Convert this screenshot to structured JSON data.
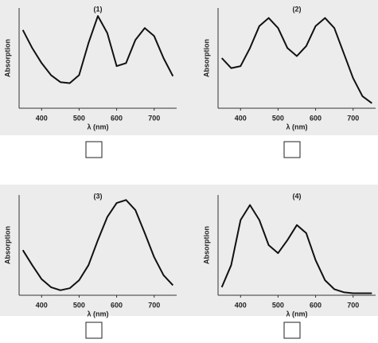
{
  "chart_data": [
    {
      "type": "line",
      "title": "(1)",
      "xlabel": "λ (nm)",
      "ylabel": "Absorption",
      "x": [
        350,
        375,
        400,
        425,
        450,
        475,
        500,
        525,
        550,
        575,
        600,
        625,
        650,
        675,
        700,
        725,
        750
      ],
      "series": [
        {
          "color": "#111111",
          "values": [
            0.78,
            0.6,
            0.45,
            0.33,
            0.26,
            0.25,
            0.33,
            0.65,
            0.92,
            0.75,
            0.42,
            0.45,
            0.68,
            0.8,
            0.72,
            0.5,
            0.32
          ]
        }
      ],
      "xlim": [
        340,
        760
      ],
      "xticks": [
        400,
        500,
        600,
        700
      ],
      "ylim": [
        0,
        1
      ]
    },
    {
      "type": "line",
      "title": "(2)",
      "xlabel": "λ (nm)",
      "ylabel": "Absorption",
      "x": [
        350,
        375,
        400,
        425,
        450,
        475,
        500,
        525,
        550,
        575,
        600,
        625,
        650,
        675,
        700,
        725,
        750
      ],
      "series": [
        {
          "color": "#111111",
          "values": [
            0.5,
            0.4,
            0.42,
            0.6,
            0.82,
            0.9,
            0.8,
            0.6,
            0.52,
            0.62,
            0.82,
            0.9,
            0.8,
            0.55,
            0.3,
            0.12,
            0.05
          ]
        }
      ],
      "xlim": [
        340,
        760
      ],
      "xticks": [
        400,
        500,
        600,
        700
      ],
      "ylim": [
        0,
        1
      ]
    },
    {
      "type": "line",
      "title": "(3)",
      "xlabel": "λ (nm)",
      "ylabel": "Absorption",
      "x": [
        350,
        375,
        400,
        425,
        450,
        475,
        500,
        525,
        550,
        575,
        600,
        625,
        650,
        675,
        700,
        725,
        750
      ],
      "series": [
        {
          "color": "#111111",
          "values": [
            0.45,
            0.3,
            0.16,
            0.08,
            0.05,
            0.07,
            0.15,
            0.3,
            0.55,
            0.78,
            0.92,
            0.95,
            0.85,
            0.62,
            0.38,
            0.2,
            0.1
          ]
        }
      ],
      "xlim": [
        340,
        760
      ],
      "xticks": [
        400,
        500,
        600,
        700
      ],
      "ylim": [
        0,
        1
      ]
    },
    {
      "type": "line",
      "title": "(4)",
      "xlabel": "λ (nm)",
      "ylabel": "Absorption",
      "x": [
        350,
        375,
        400,
        425,
        450,
        475,
        500,
        525,
        550,
        575,
        600,
        625,
        650,
        675,
        700,
        725,
        750
      ],
      "series": [
        {
          "color": "#111111",
          "values": [
            0.08,
            0.3,
            0.75,
            0.9,
            0.75,
            0.5,
            0.42,
            0.55,
            0.7,
            0.62,
            0.35,
            0.15,
            0.06,
            0.03,
            0.02,
            0.02,
            0.02
          ]
        }
      ],
      "xlim": [
        340,
        760
      ],
      "xticks": [
        400,
        500,
        600,
        700
      ],
      "ylim": [
        0,
        1
      ]
    }
  ]
}
